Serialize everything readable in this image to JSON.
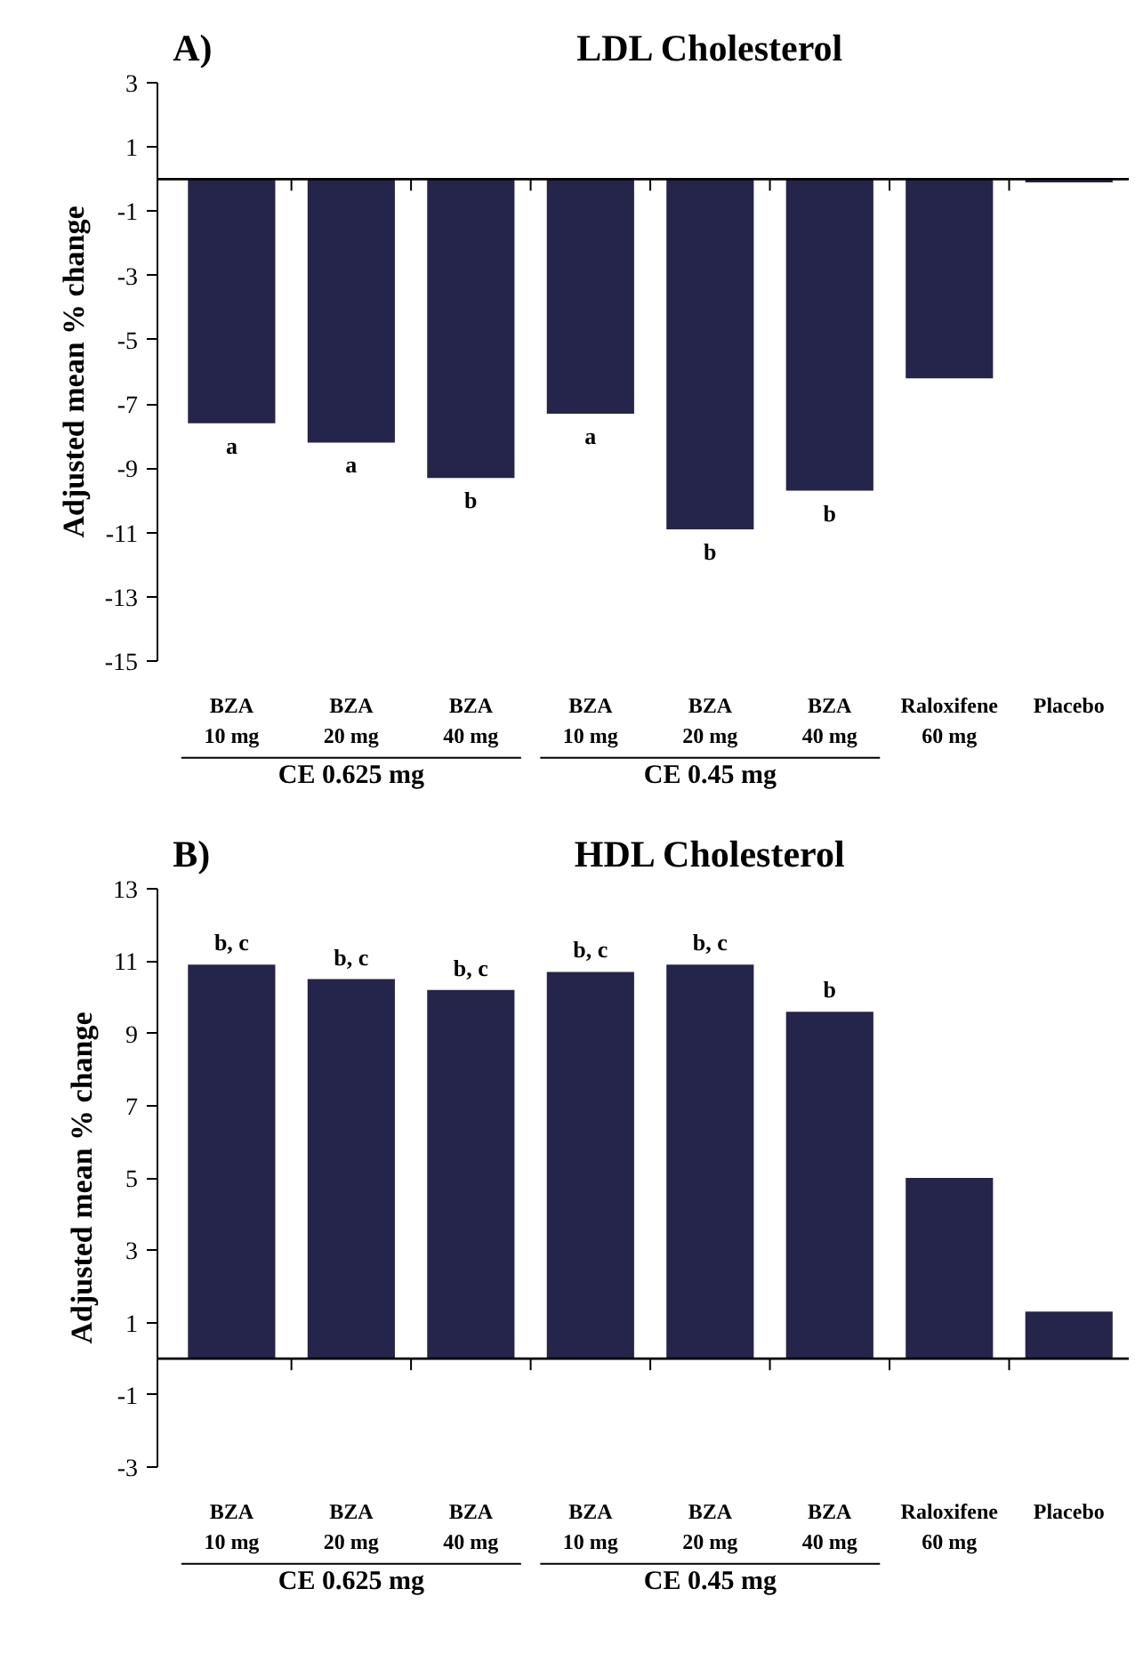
{
  "chart_data": [
    {
      "type": "bar",
      "title": "LDL Cholesterol",
      "ylabel": "Adjusted mean % change",
      "categories": [
        "BZA\n10 mg",
        "BZA\n20 mg",
        "BZA\n40 mg",
        "BZA\n10 mg",
        "BZA\n20 mg",
        "BZA\n40 mg",
        "Raloxifene\n60 mg",
        "Placebo"
      ],
      "values": [
        -7.6,
        -8.2,
        -9.3,
        -7.3,
        -10.9,
        -9.7,
        -6.2,
        -0.1
      ],
      "color": "#25244a",
      "ylim": [
        -15,
        3
      ],
      "yticks": [
        -15,
        -13,
        -11,
        -9,
        -7,
        -5,
        -3,
        -1,
        1,
        3
      ],
      "value_labels": [
        "a",
        "a",
        "b",
        "a",
        "b",
        "b",
        null,
        null
      ],
      "annotations": [
        "A)",
        "CE 0.625 mg",
        "CE 0.45 mg"
      ]
    },
    {
      "type": "bar",
      "title": "HDL Cholesterol",
      "ylabel": "Adjusted mean % change",
      "categories": [
        "BZA\n10 mg",
        "BZA\n20 mg",
        "BZA\n40 mg",
        "BZA\n10 mg",
        "BZA\n20 mg",
        "BZA\n40 mg",
        "Raloxifene\n60 mg",
        "Placebo"
      ],
      "values": [
        10.9,
        10.5,
        10.2,
        10.7,
        10.9,
        9.6,
        5.0,
        1.3
      ],
      "color": "#25244a",
      "ylim": [
        -3,
        13
      ],
      "yticks": [
        -3,
        -1,
        1,
        3,
        5,
        7,
        9,
        11,
        13
      ],
      "value_labels": [
        "b, c",
        "b, c",
        "b, c",
        "b, c",
        "b, c",
        "b",
        null,
        null
      ],
      "annotations": [
        "B)",
        "CE 0.625 mg",
        "CE 0.45 mg"
      ]
    }
  ]
}
